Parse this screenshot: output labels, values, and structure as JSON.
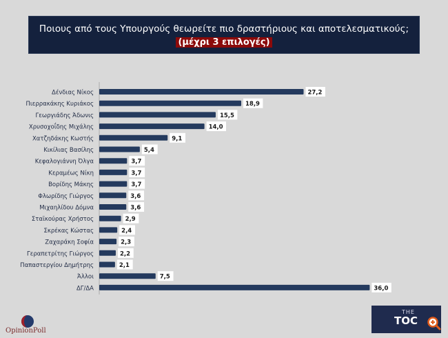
{
  "chart_data": {
    "type": "bar",
    "orientation": "horizontal",
    "title": "Ποιους από τους Υπουργούς θεωρείτε πιο δραστήριους και αποτελεσματικούς;",
    "subtitle": "(μέχρι 3 επιλογές)",
    "categories": [
      "Δένδιας Νίκος",
      "Πιερρακάκης Κυριάκος",
      "Γεωργιάδης Άδωνις",
      "Χρυσοχοΐδης Μιχάλης",
      "Χατζηδάκης Κωστής",
      "Κικίλιας Βασίλης",
      "Κεφαλογιάννη Όλγα",
      "Κεραμέως Νίκη",
      "Βορίδης Μάκης",
      "Φλωρίδης Γιώργος",
      "Μιχαηλίδου Δόμνα",
      "Σταϊκούρας Χρήστος",
      "Σκρέκας Κώστας",
      "Ζαχαράκη Σοφία",
      "Γεραπετρίτης Γιώργος",
      "Παπαστεργίου Δημήτρης",
      "Άλλοι",
      "ΔΓ/ΔΑ"
    ],
    "values": [
      27.2,
      18.9,
      15.5,
      14.0,
      9.1,
      5.4,
      3.7,
      3.7,
      3.7,
      3.6,
      3.6,
      2.9,
      2.4,
      2.3,
      2.2,
      2.1,
      7.5,
      36.0
    ],
    "value_labels": [
      "27,2",
      "18,9",
      "15,5",
      "14,0",
      "9,1",
      "5,4",
      "3,7",
      "3,7",
      "3,7",
      "3,6",
      "3,6",
      "2,9",
      "2,4",
      "2,3",
      "2,2",
      "2,1",
      "7,5",
      "36,0"
    ],
    "xlim": [
      0,
      36
    ],
    "grid": false,
    "bar_color": "#243a5e"
  },
  "logos": {
    "left": "OpinionPoll",
    "right_small": "THE",
    "right": "TOC"
  },
  "colors": {
    "title_bg": "#14213d",
    "subtitle_bg": "#8b0a0a",
    "background": "#d9d9d9"
  }
}
